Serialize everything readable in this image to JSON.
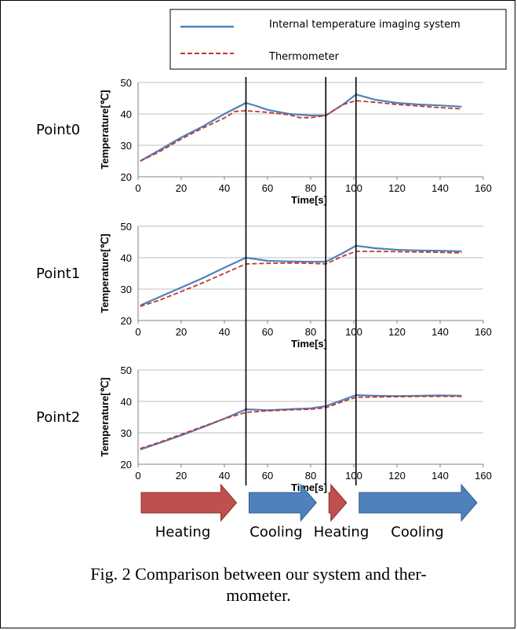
{
  "legend": {
    "items": [
      {
        "label": "Internal temperature imaging system",
        "color": "#4f81bd",
        "style": "solid"
      },
      {
        "label": "Thermometer",
        "color": "#c0392b",
        "style": "dashed"
      }
    ]
  },
  "chart_data": [
    {
      "type": "line",
      "row_label": "Point0",
      "xlabel": "Time[s]",
      "ylabel": "Temperature[℃]",
      "xlim": [
        0,
        160
      ],
      "ylim": [
        20,
        50
      ],
      "xticks": [
        0,
        20,
        40,
        60,
        80,
        100,
        120,
        140,
        160
      ],
      "yticks": [
        20,
        30,
        40,
        50
      ],
      "grid": true,
      "series": [
        {
          "name": "Internal temperature imaging system",
          "color": "#4f81bd",
          "x": [
            1,
            10,
            20,
            30,
            40,
            50,
            55,
            60,
            70,
            80,
            87,
            95,
            101,
            110,
            120,
            130,
            140,
            150
          ],
          "y": [
            25,
            28.5,
            32.5,
            36,
            40,
            43.5,
            42.5,
            41.3,
            40,
            39.5,
            39.5,
            43,
            46.2,
            44.5,
            43.5,
            43,
            42.7,
            42.3
          ]
        },
        {
          "name": "Thermometer",
          "color": "#c0392b",
          "x": [
            1,
            10,
            20,
            30,
            40,
            45,
            50,
            60,
            70,
            75,
            80,
            87,
            95,
            101,
            110,
            120,
            130,
            140,
            150
          ],
          "y": [
            25,
            28,
            32,
            35.5,
            38.7,
            40.8,
            41,
            40.5,
            39.7,
            38.8,
            38.8,
            39.5,
            43,
            44.2,
            43.7,
            43,
            42.5,
            42,
            41.6
          ]
        }
      ]
    },
    {
      "type": "line",
      "row_label": "Point1",
      "xlabel": "Time[s]",
      "ylabel": "Temperature[℃]",
      "xlim": [
        0,
        160
      ],
      "ylim": [
        20,
        50
      ],
      "xticks": [
        0,
        20,
        40,
        60,
        80,
        100,
        120,
        140,
        160
      ],
      "yticks": [
        20,
        30,
        40,
        50
      ],
      "grid": true,
      "series": [
        {
          "name": "Internal temperature imaging system",
          "color": "#4f81bd",
          "x": [
            1,
            10,
            20,
            30,
            40,
            50,
            60,
            70,
            80,
            87,
            95,
            101,
            110,
            120,
            130,
            140,
            150
          ],
          "y": [
            24.8,
            27.5,
            30.5,
            33.5,
            36.8,
            40,
            39,
            38.8,
            38.7,
            38.7,
            41.5,
            43.8,
            43,
            42.5,
            42.3,
            42.2,
            42
          ]
        },
        {
          "name": "Thermometer",
          "color": "#c0392b",
          "x": [
            1,
            10,
            20,
            30,
            40,
            50,
            60,
            70,
            80,
            87,
            95,
            101,
            110,
            120,
            130,
            140,
            150
          ],
          "y": [
            24.5,
            26.5,
            29.2,
            32,
            35,
            38,
            38.2,
            38.3,
            38.2,
            38,
            40.5,
            42,
            42,
            41.9,
            41.8,
            41.7,
            41.5
          ]
        }
      ]
    },
    {
      "type": "line",
      "row_label": "Point2",
      "xlabel": "Time[s]",
      "ylabel": "Temperature[℃]",
      "xlim": [
        0,
        160
      ],
      "ylim": [
        20,
        50
      ],
      "xticks": [
        0,
        20,
        40,
        60,
        80,
        100,
        120,
        140,
        160
      ],
      "yticks": [
        20,
        30,
        40,
        50
      ],
      "grid": true,
      "series": [
        {
          "name": "Internal temperature imaging system",
          "color": "#4f81bd",
          "x": [
            1,
            10,
            20,
            30,
            40,
            50,
            60,
            70,
            80,
            87,
            95,
            101,
            110,
            120,
            130,
            140,
            150
          ],
          "y": [
            24.7,
            26.8,
            29.2,
            31.8,
            34.5,
            37.5,
            37.2,
            37.5,
            37.8,
            38.5,
            40.5,
            42,
            41.8,
            41.7,
            41.8,
            41.9,
            41.8
          ]
        },
        {
          "name": "Thermometer",
          "color": "#c0392b",
          "x": [
            1,
            10,
            20,
            30,
            40,
            50,
            60,
            70,
            80,
            87,
            95,
            101,
            110,
            120,
            130,
            140,
            150
          ],
          "y": [
            25,
            27,
            29.5,
            32,
            34.5,
            36.5,
            37,
            37.3,
            37.5,
            38,
            40,
            41.3,
            41.4,
            41.5,
            41.6,
            41.6,
            41.6
          ]
        }
      ]
    }
  ],
  "phase_markers_x": [
    50,
    87,
    101
  ],
  "phases": [
    {
      "label": "Heating",
      "color": "#c0504d",
      "from": 0,
      "to": 50
    },
    {
      "label": "Cooling",
      "color": "#4f81bd",
      "from": 50,
      "to": 87
    },
    {
      "label": "Heating",
      "color": "#c0504d",
      "from": 87,
      "to": 101
    },
    {
      "label": "Cooling",
      "color": "#4f81bd",
      "from": 101,
      "to": 160
    }
  ],
  "caption": {
    "line1": "Fig. 2 Comparison between our system and ther-",
    "line2": "mometer."
  }
}
